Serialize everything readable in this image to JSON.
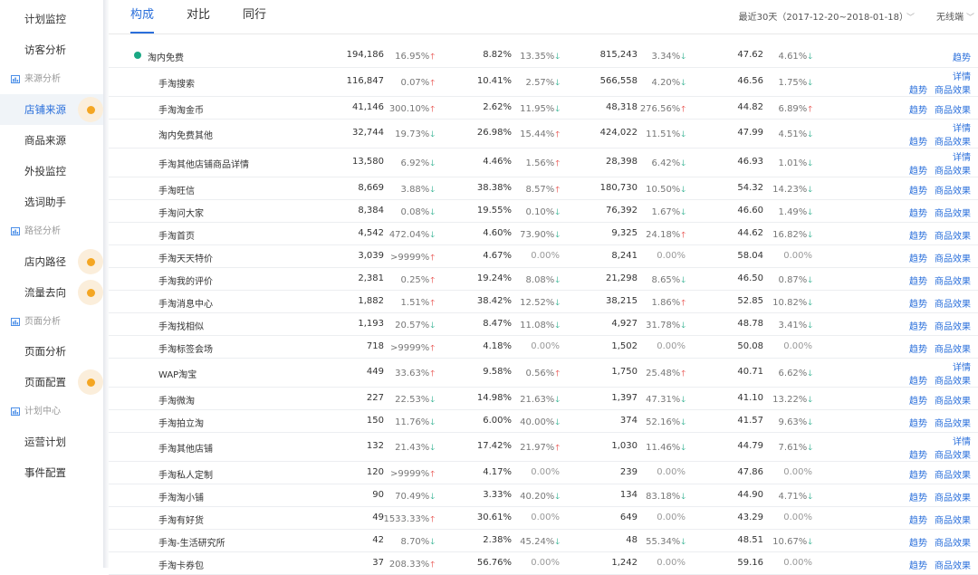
{
  "sidebar": {
    "items": [
      {
        "label": "计划监控",
        "type": "item",
        "dot": false,
        "active": false
      },
      {
        "label": "访客分析",
        "type": "item",
        "dot": false,
        "active": false
      },
      {
        "label": "来源分析",
        "type": "group"
      },
      {
        "label": "店铺来源",
        "type": "item",
        "dot": true,
        "active": true
      },
      {
        "label": "商品来源",
        "type": "item",
        "dot": false,
        "active": false
      },
      {
        "label": "外投监控",
        "type": "item",
        "dot": false,
        "active": false
      },
      {
        "label": "选词助手",
        "type": "item",
        "dot": false,
        "active": false
      },
      {
        "label": "路径分析",
        "type": "group"
      },
      {
        "label": "店内路径",
        "type": "item",
        "dot": true,
        "active": false
      },
      {
        "label": "流量去向",
        "type": "item",
        "dot": true,
        "active": false
      },
      {
        "label": "页面分析",
        "type": "group"
      },
      {
        "label": "页面分析",
        "type": "item",
        "dot": false,
        "active": false
      },
      {
        "label": "页面配置",
        "type": "item",
        "dot": true,
        "active": false
      },
      {
        "label": "计划中心",
        "type": "group"
      },
      {
        "label": "运营计划",
        "type": "item",
        "dot": false,
        "active": false
      },
      {
        "label": "事件配置",
        "type": "item",
        "dot": false,
        "active": false
      }
    ]
  },
  "header": {
    "tabs": [
      "构成",
      "对比",
      "同行"
    ],
    "active_tab": 0,
    "date_range": "最近30天（2017-12-20~2018-01-18）",
    "terminal": "无线端"
  },
  "colors": {
    "accent": "#2a6fdb",
    "up": "#e53935",
    "down": "#1aa884",
    "dot": "#f4a623"
  },
  "table": {
    "link_labels": {
      "trend": "趋势",
      "goods": "商品效果",
      "detail": "详情"
    },
    "rows": [
      {
        "name": "淘内免费",
        "parent": true,
        "v1": "194,186",
        "p1": "16.95%",
        "d1": "up",
        "v2": "8.82%",
        "p2": "13.35%",
        "d2": "down",
        "v3": "815,243",
        "p3": "3.34%",
        "d3": "down",
        "v4": "47.62",
        "p4": "4.61%",
        "d4": "down",
        "links": [
          "trend"
        ]
      },
      {
        "name": "手淘搜索",
        "v1": "116,847",
        "p1": "0.07%",
        "d1": "up",
        "v2": "10.41%",
        "p2": "2.57%",
        "d2": "down",
        "v3": "566,558",
        "p3": "4.20%",
        "d3": "down",
        "v4": "46.56",
        "p4": "1.75%",
        "d4": "down",
        "links": [
          "detail",
          "trend",
          "goods"
        ]
      },
      {
        "name": "手淘淘金币",
        "v1": "41,146",
        "p1": "300.10%",
        "d1": "up",
        "v2": "2.62%",
        "p2": "11.95%",
        "d2": "down",
        "v3": "48,318",
        "p3": "276.56%",
        "d3": "up",
        "v4": "44.82",
        "p4": "6.89%",
        "d4": "up",
        "links": [
          "trend",
          "goods"
        ]
      },
      {
        "name": "淘内免费其他",
        "v1": "32,744",
        "p1": "19.73%",
        "d1": "down",
        "v2": "26.98%",
        "p2": "15.44%",
        "d2": "up",
        "v3": "424,022",
        "p3": "11.51%",
        "d3": "down",
        "v4": "47.99",
        "p4": "4.51%",
        "d4": "down",
        "links": [
          "detail",
          "trend",
          "goods"
        ]
      },
      {
        "name": "手淘其他店铺商品详情",
        "v1": "13,580",
        "p1": "6.92%",
        "d1": "down",
        "v2": "4.46%",
        "p2": "1.56%",
        "d2": "up",
        "v3": "28,398",
        "p3": "6.42%",
        "d3": "down",
        "v4": "46.93",
        "p4": "1.01%",
        "d4": "down",
        "links": [
          "detail",
          "trend",
          "goods"
        ]
      },
      {
        "name": "手淘旺信",
        "v1": "8,669",
        "p1": "3.88%",
        "d1": "down",
        "v2": "38.38%",
        "p2": "8.57%",
        "d2": "up",
        "v3": "180,730",
        "p3": "10.50%",
        "d3": "down",
        "v4": "54.32",
        "p4": "14.23%",
        "d4": "down",
        "links": [
          "trend",
          "goods"
        ]
      },
      {
        "name": "手淘问大家",
        "v1": "8,384",
        "p1": "0.08%",
        "d1": "down",
        "v2": "19.55%",
        "p2": "0.10%",
        "d2": "down",
        "v3": "76,392",
        "p3": "1.67%",
        "d3": "down",
        "v4": "46.60",
        "p4": "1.49%",
        "d4": "down",
        "links": [
          "trend",
          "goods"
        ]
      },
      {
        "name": "手淘首页",
        "v1": "4,542",
        "p1": "472.04%",
        "d1": "down",
        "v2": "4.60%",
        "p2": "73.90%",
        "d2": "down",
        "v3": "9,325",
        "p3": "24.18%",
        "d3": "up",
        "v4": "44.62",
        "p4": "16.82%",
        "d4": "down",
        "links": [
          "trend",
          "goods"
        ]
      },
      {
        "name": "手淘天天特价",
        "v1": "3,039",
        "p1": ">9999%",
        "d1": "up",
        "v2": "4.67%",
        "p2": "0.00%",
        "d2": "",
        "v3": "8,241",
        "p3": "0.00%",
        "d3": "",
        "v4": "58.04",
        "p4": "0.00%",
        "d4": "",
        "links": [
          "trend",
          "goods"
        ]
      },
      {
        "name": "手淘我的评价",
        "v1": "2,381",
        "p1": "0.25%",
        "d1": "up",
        "v2": "19.24%",
        "p2": "8.08%",
        "d2": "down",
        "v3": "21,298",
        "p3": "8.65%",
        "d3": "down",
        "v4": "46.50",
        "p4": "0.87%",
        "d4": "down",
        "links": [
          "trend",
          "goods"
        ]
      },
      {
        "name": "手淘消息中心",
        "v1": "1,882",
        "p1": "1.51%",
        "d1": "up",
        "v2": "38.42%",
        "p2": "12.52%",
        "d2": "down",
        "v3": "38,215",
        "p3": "1.86%",
        "d3": "up",
        "v4": "52.85",
        "p4": "10.82%",
        "d4": "down",
        "links": [
          "trend",
          "goods"
        ]
      },
      {
        "name": "手淘找相似",
        "v1": "1,193",
        "p1": "20.57%",
        "d1": "down",
        "v2": "8.47%",
        "p2": "11.08%",
        "d2": "down",
        "v3": "4,927",
        "p3": "31.78%",
        "d3": "down",
        "v4": "48.78",
        "p4": "3.41%",
        "d4": "down",
        "links": [
          "trend",
          "goods"
        ]
      },
      {
        "name": "手淘标签会场",
        "v1": "718",
        "p1": ">9999%",
        "d1": "up",
        "v2": "4.18%",
        "p2": "0.00%",
        "d2": "",
        "v3": "1,502",
        "p3": "0.00%",
        "d3": "",
        "v4": "50.08",
        "p4": "0.00%",
        "d4": "",
        "links": [
          "trend",
          "goods"
        ]
      },
      {
        "name": "WAP淘宝",
        "v1": "449",
        "p1": "33.63%",
        "d1": "up",
        "v2": "9.58%",
        "p2": "0.56%",
        "d2": "up",
        "v3": "1,750",
        "p3": "25.48%",
        "d3": "up",
        "v4": "40.71",
        "p4": "6.62%",
        "d4": "down",
        "links": [
          "detail",
          "trend",
          "goods"
        ]
      },
      {
        "name": "手淘微淘",
        "v1": "227",
        "p1": "22.53%",
        "d1": "down",
        "v2": "14.98%",
        "p2": "21.63%",
        "d2": "down",
        "v3": "1,397",
        "p3": "47.31%",
        "d3": "down",
        "v4": "41.10",
        "p4": "13.22%",
        "d4": "down",
        "links": [
          "trend",
          "goods"
        ]
      },
      {
        "name": "手淘拍立淘",
        "v1": "150",
        "p1": "11.76%",
        "d1": "down",
        "v2": "6.00%",
        "p2": "40.00%",
        "d2": "down",
        "v3": "374",
        "p3": "52.16%",
        "d3": "down",
        "v4": "41.57",
        "p4": "9.63%",
        "d4": "down",
        "links": [
          "trend",
          "goods"
        ]
      },
      {
        "name": "手淘其他店铺",
        "v1": "132",
        "p1": "21.43%",
        "d1": "down",
        "v2": "17.42%",
        "p2": "21.97%",
        "d2": "up",
        "v3": "1,030",
        "p3": "11.46%",
        "d3": "down",
        "v4": "44.79",
        "p4": "7.61%",
        "d4": "down",
        "links": [
          "detail",
          "trend",
          "goods"
        ]
      },
      {
        "name": "手淘私人定制",
        "v1": "120",
        "p1": ">9999%",
        "d1": "up",
        "v2": "4.17%",
        "p2": "0.00%",
        "d2": "",
        "v3": "239",
        "p3": "0.00%",
        "d3": "",
        "v4": "47.86",
        "p4": "0.00%",
        "d4": "",
        "links": [
          "trend",
          "goods"
        ]
      },
      {
        "name": "手淘淘小铺",
        "v1": "90",
        "p1": "70.49%",
        "d1": "down",
        "v2": "3.33%",
        "p2": "40.20%",
        "d2": "down",
        "v3": "134",
        "p3": "83.18%",
        "d3": "down",
        "v4": "44.90",
        "p4": "4.71%",
        "d4": "down",
        "links": [
          "trend",
          "goods"
        ]
      },
      {
        "name": "手淘有好货",
        "v1": "49",
        "p1": "1533.33%",
        "d1": "up",
        "v2": "30.61%",
        "p2": "0.00%",
        "d2": "",
        "v3": "649",
        "p3": "0.00%",
        "d3": "",
        "v4": "43.29",
        "p4": "0.00%",
        "d4": "",
        "links": [
          "trend",
          "goods"
        ]
      },
      {
        "name": "手淘-生活研究所",
        "v1": "42",
        "p1": "8.70%",
        "d1": "down",
        "v2": "2.38%",
        "p2": "45.24%",
        "d2": "down",
        "v3": "48",
        "p3": "55.34%",
        "d3": "down",
        "v4": "48.51",
        "p4": "10.67%",
        "d4": "down",
        "links": [
          "trend",
          "goods"
        ]
      },
      {
        "name": "手淘卡券包",
        "v1": "37",
        "p1": "208.33%",
        "d1": "up",
        "v2": "56.76%",
        "p2": "0.00%",
        "d2": "",
        "v3": "1,242",
        "p3": "0.00%",
        "d3": "",
        "v4": "59.16",
        "p4": "0.00%",
        "d4": "",
        "links": [
          "trend",
          "goods"
        ]
      }
    ]
  }
}
